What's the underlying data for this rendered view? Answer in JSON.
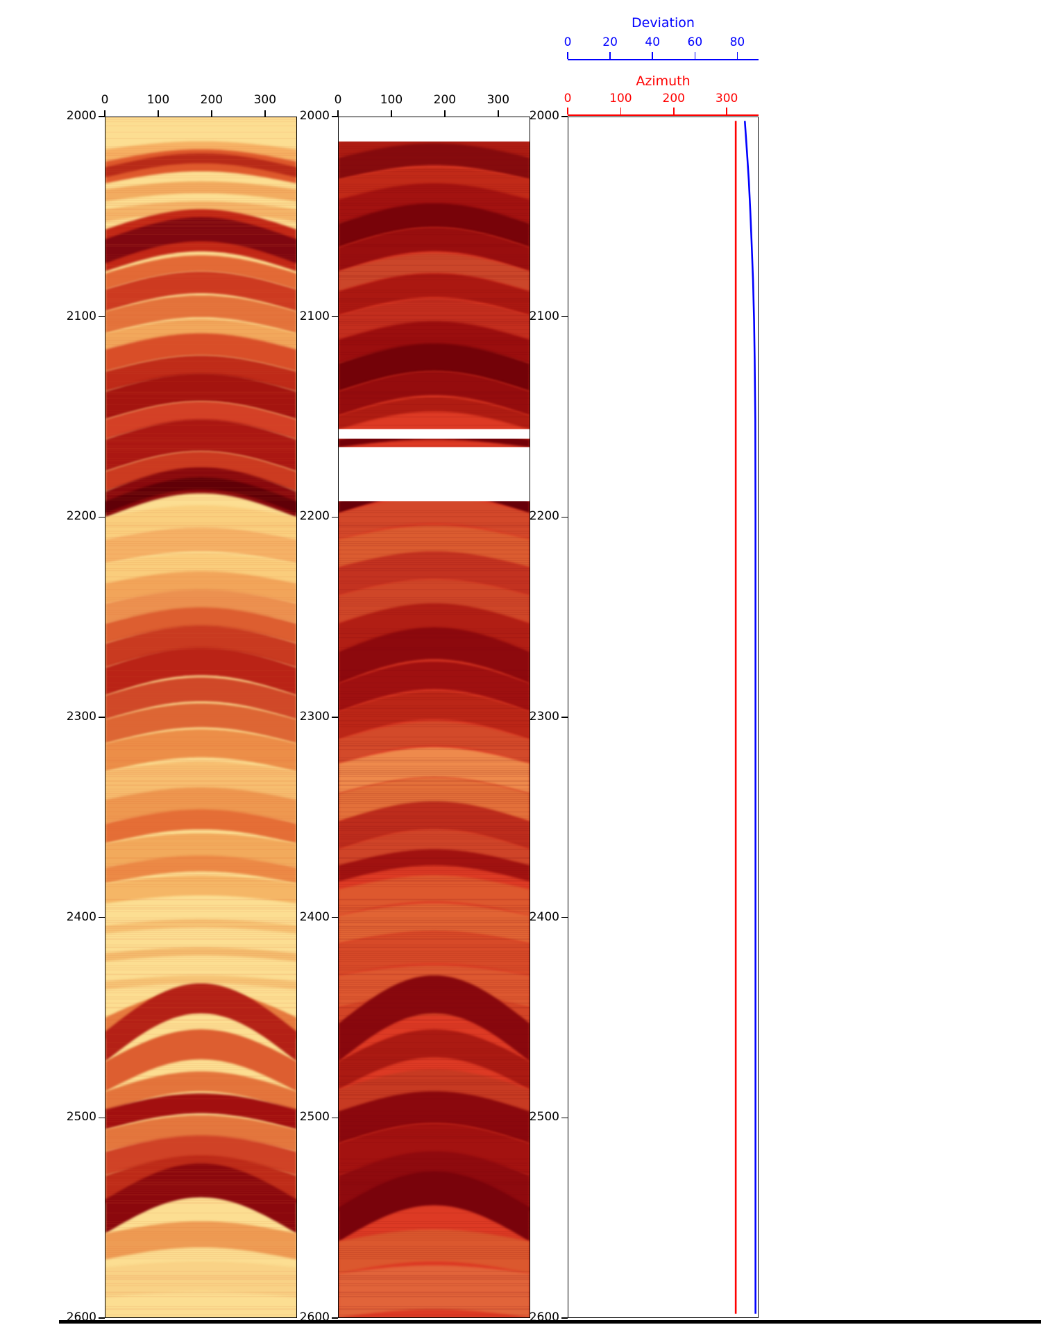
{
  "figure": {
    "background": "#ffffff",
    "border_color": "#000000"
  },
  "depth_axis": {
    "min": 2000,
    "max": 2600,
    "tick_values": [
      2000,
      2100,
      2200,
      2300,
      2400,
      2500,
      2600
    ],
    "tick_labels": [
      "2000",
      "2100",
      "2200",
      "2300",
      "2400",
      "2500",
      "2600"
    ]
  },
  "degree_axis": {
    "min": 0,
    "max": 360,
    "tick_values": [
      0,
      100,
      200,
      300
    ],
    "tick_labels": [
      "0",
      "100",
      "200",
      "300"
    ]
  },
  "deviation_axis": {
    "label": "Deviation",
    "color": "#0000ff",
    "min": 0,
    "max": 90,
    "tick_values": [
      0,
      20,
      40,
      60,
      80
    ],
    "tick_labels": [
      "0",
      "20",
      "40",
      "60",
      "80"
    ]
  },
  "azimuth_axis": {
    "label": "Azimuth",
    "color": "#ff0000",
    "min": 0,
    "max": 360,
    "tick_values": [
      0,
      100,
      200,
      300
    ],
    "tick_labels": [
      "0",
      "100",
      "200",
      "300"
    ]
  },
  "chart_data": [
    {
      "type": "heatmap",
      "name": "borehole-image-log-left",
      "x_range": [
        0,
        360
      ],
      "depth_range": [
        2000,
        2600
      ],
      "colormap": "yellow-orange-red",
      "background": "#FCDE92",
      "streak_color": "#E06030",
      "streak_alpha": 0.12,
      "gaps": [],
      "bands": [
        [
          2016,
          2022,
          "#F6B164",
          4
        ],
        [
          2022,
          2033,
          "#DF592C",
          6
        ],
        [
          2025,
          2030,
          "#B82A18",
          7
        ],
        [
          2036,
          2042,
          "#F2AC60",
          4
        ],
        [
          2046,
          2052,
          "#F4B468",
          4
        ],
        [
          2056,
          2077,
          "#C22716",
          10
        ],
        [
          2061,
          2073,
          "#7F0710",
          11
        ],
        [
          2078,
          2086,
          "#E36A36",
          9
        ],
        [
          2086,
          2097,
          "#CD3A20",
          9
        ],
        [
          2097,
          2108,
          "#E4743C",
          8
        ],
        [
          2108,
          2116,
          "#F2A85C",
          7
        ],
        [
          2116,
          2127,
          "#D94E28",
          8
        ],
        [
          2127,
          2137,
          "#BF2A18",
          8
        ],
        [
          2137,
          2151,
          "#A4140F",
          9
        ],
        [
          2151,
          2161,
          "#D44026",
          9
        ],
        [
          2161,
          2177,
          "#AB1712",
          10
        ],
        [
          2177,
          2187,
          "#CB3A20",
          10
        ],
        [
          2187,
          2200,
          "#89090D",
          12
        ],
        [
          2192,
          2198,
          "#600007",
          12
        ],
        [
          2200,
          2211,
          "#FACF7E",
          6
        ],
        [
          2211,
          2223,
          "#F5B166",
          6
        ],
        [
          2223,
          2233,
          "#FACD7C",
          5
        ],
        [
          2233,
          2243,
          "#F2A55A",
          6
        ],
        [
          2243,
          2253,
          "#EC9150",
          7
        ],
        [
          2253,
          2263,
          "#DD5E30",
          8
        ],
        [
          2263,
          2275,
          "#C93A20",
          9
        ],
        [
          2275,
          2289,
          "#BA2316",
          10
        ],
        [
          2289,
          2301,
          "#D04828",
          9
        ],
        [
          2301,
          2313,
          "#DD6634",
          8
        ],
        [
          2313,
          2327,
          "#EC8E48",
          7
        ],
        [
          2327,
          2341,
          "#F7BE70",
          5
        ],
        [
          2341,
          2353,
          "#EE9850",
          6
        ],
        [
          2353,
          2363,
          "#E56E36",
          7
        ],
        [
          2363,
          2375,
          "#F2AA5C",
          5
        ],
        [
          2375,
          2383,
          "#EC8A46",
          6
        ],
        [
          2383,
          2393,
          "#F5B666",
          4
        ],
        [
          2404,
          2408,
          "#F6C273",
          3
        ],
        [
          2418,
          2422,
          "#F4BC6E",
          3
        ],
        [
          2432,
          2436,
          "#F6C476",
          3
        ],
        [
          2450,
          2461,
          "#E67A3E",
          14
        ],
        [
          2457,
          2472,
          "#B42016",
          24
        ],
        [
          2472,
          2487,
          "#DD5E30",
          16
        ],
        [
          2487,
          2497,
          "#E4753C",
          10
        ],
        [
          2496,
          2506,
          "#A20F0F",
          8
        ],
        [
          2506,
          2517,
          "#E4773E",
          7
        ],
        [
          2517,
          2529,
          "#D04226",
          8
        ],
        [
          2529,
          2543,
          "#BD2A18",
          10
        ],
        [
          2541,
          2558,
          "#8B080D",
          18
        ],
        [
          2558,
          2571,
          "#EE9C54",
          6
        ],
        [
          2575,
          2590,
          "#F9D286",
          3
        ]
      ]
    },
    {
      "type": "heatmap",
      "name": "borehole-image-log-middle",
      "x_range": [
        0,
        360
      ],
      "depth_range": [
        2000,
        2600
      ],
      "colormap": "dark-red",
      "background": "#DD3A24",
      "streak_color": "#7A0A0E",
      "streak_alpha": 0.15,
      "gaps": [
        [
          2000,
          2012
        ],
        [
          2156,
          2161
        ],
        [
          2165,
          2192
        ]
      ],
      "bands": [
        [
          2012,
          2020,
          "#AD1C12",
          5
        ],
        [
          2020,
          2031,
          "#860B0D",
          7
        ],
        [
          2031,
          2041,
          "#C12A18",
          6
        ],
        [
          2041,
          2053,
          "#A31210",
          8
        ],
        [
          2053,
          2065,
          "#780309",
          10
        ],
        [
          2065,
          2077,
          "#990E0E",
          10
        ],
        [
          2077,
          2087,
          "#CB462A",
          9
        ],
        [
          2087,
          2099,
          "#AB1811",
          9
        ],
        [
          2099,
          2111,
          "#C32E1E",
          8
        ],
        [
          2111,
          2123,
          "#9B0E0E",
          9
        ],
        [
          2123,
          2137,
          "#730208",
          10
        ],
        [
          2137,
          2149,
          "#950C0D",
          10
        ],
        [
          2149,
          2156,
          "#AF1C12",
          9
        ],
        [
          2161,
          2165,
          "#730108",
          4
        ],
        [
          2192,
          2198,
          "#680009",
          10
        ],
        [
          2198,
          2211,
          "#D3482A",
          8
        ],
        [
          2211,
          2225,
          "#DB5C30",
          7
        ],
        [
          2225,
          2239,
          "#C33220",
          8
        ],
        [
          2239,
          2253,
          "#CF4628",
          8
        ],
        [
          2253,
          2267,
          "#B11E14",
          10
        ],
        [
          2267,
          2283,
          "#8D090D",
          12
        ],
        [
          2283,
          2297,
          "#9F1010",
          11
        ],
        [
          2297,
          2311,
          "#BB2617",
          10
        ],
        [
          2311,
          2323,
          "#D34A2A",
          9
        ],
        [
          2323,
          2338,
          "#EE8A4C",
          8
        ],
        [
          2338,
          2352,
          "#E3703A",
          8
        ],
        [
          2352,
          2366,
          "#BD2C1C",
          10
        ],
        [
          2366,
          2380,
          "#CF4428",
          10
        ],
        [
          2374,
          2382,
          "#A11210",
          8
        ],
        [
          2386,
          2399,
          "#DD582E",
          7
        ],
        [
          2399,
          2413,
          "#E16434",
          6
        ],
        [
          2413,
          2429,
          "#D74A28",
          6
        ],
        [
          2429,
          2445,
          "#DD5830",
          5
        ],
        [
          2445,
          2457,
          "#D34426",
          8
        ],
        [
          2453,
          2472,
          "#89080D",
          24
        ],
        [
          2472,
          2486,
          "#AB1A12",
          16
        ],
        [
          2486,
          2499,
          "#C73A22",
          10
        ],
        [
          2497,
          2513,
          "#8B080D",
          10
        ],
        [
          2513,
          2529,
          "#A31210",
          10
        ],
        [
          2529,
          2547,
          "#8F0A0E",
          12
        ],
        [
          2545,
          2562,
          "#79030B",
          18
        ],
        [
          2562,
          2578,
          "#DB582E",
          6
        ],
        [
          2578,
          2600,
          "#E1643A",
          4
        ]
      ]
    },
    {
      "type": "line",
      "name": "well-trajectory",
      "depth_range": [
        2000,
        2600
      ],
      "legend_position": "top-axes",
      "series": [
        {
          "name": "Deviation",
          "color": "#0000ff",
          "x_range": [
            0,
            90
          ],
          "points": [
            [
              2000,
              83.8
            ],
            [
              2015,
              84.8
            ],
            [
              2030,
              85.7
            ],
            [
              2045,
              86.4
            ],
            [
              2060,
              87.0
            ],
            [
              2080,
              87.7
            ],
            [
              2100,
              88.2
            ],
            [
              2120,
              88.5
            ],
            [
              2150,
              88.8
            ],
            [
              2200,
              88.9
            ],
            [
              2600,
              88.9
            ]
          ]
        },
        {
          "name": "Azimuth",
          "color": "#ff0000",
          "x_range": [
            0,
            360
          ],
          "points": [
            [
              2000,
              318
            ],
            [
              2600,
              318
            ]
          ]
        }
      ]
    }
  ]
}
